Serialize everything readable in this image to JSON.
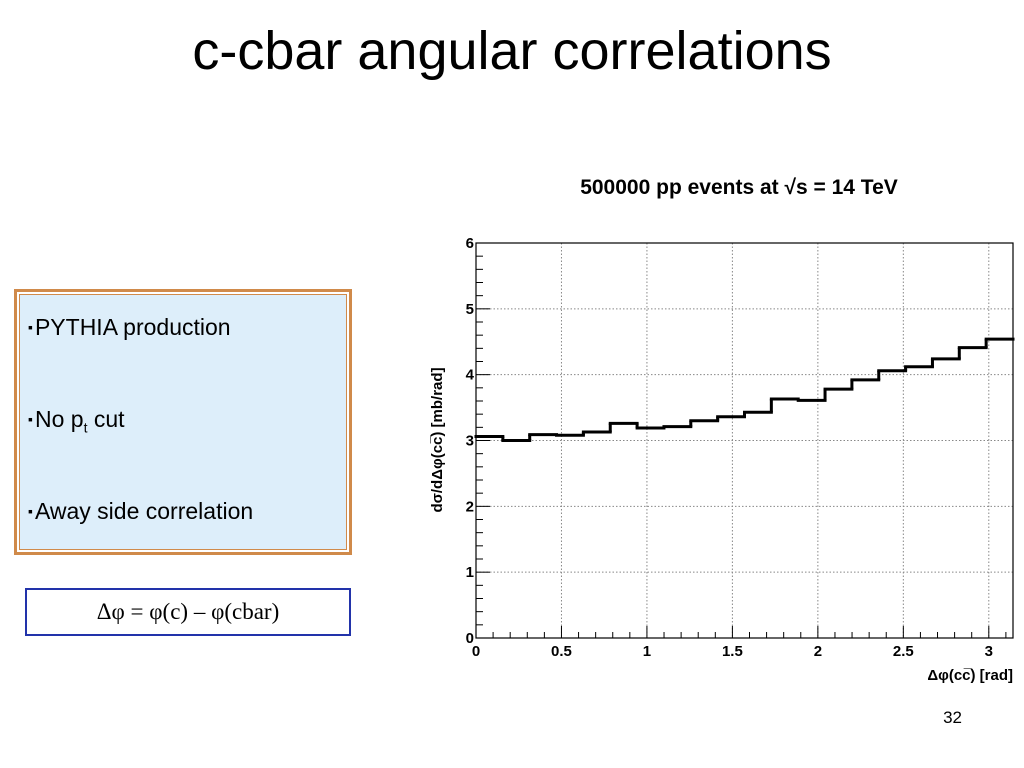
{
  "slide": {
    "title": "c-cbar angular correlations",
    "page_number": "32",
    "bullets": [
      {
        "text": "PYTHIA production",
        "sub": "",
        "rest": ""
      },
      {
        "text": "No p",
        "sub": "t",
        "rest": " cut"
      },
      {
        "text": "Away side correlation",
        "sub": "",
        "rest": ""
      }
    ],
    "bullet_marker": "▪",
    "formula": "Δφ = φ(c) – φ(cbar)",
    "colors": {
      "box_border": "#d08a4a",
      "box_fill": "#ddeefa",
      "formula_border": "#2233aa"
    }
  },
  "chart_data": {
    "type": "histogram",
    "title": "500000 pp events at √s = 14 TeV",
    "xlabel": "Δφ(cc̅)  [rad]",
    "ylabel": "dσ/dΔφ(cc̅) [mb/rad]",
    "xlim": [
      0,
      3.1416
    ],
    "ylim": [
      0,
      6
    ],
    "grid": true,
    "x_ticks": [
      "0",
      "0.5",
      "1",
      "1.5",
      "2",
      "2.5",
      "3"
    ],
    "x_tick_values": [
      0,
      0.5,
      1,
      1.5,
      2,
      2.5,
      3
    ],
    "y_ticks": [
      "0",
      "1",
      "2",
      "3",
      "4",
      "5",
      "6"
    ],
    "y_tick_values": [
      0,
      1,
      2,
      3,
      4,
      5,
      6
    ],
    "bin_edges": [
      0,
      0.1571,
      0.3142,
      0.4712,
      0.6283,
      0.7854,
      0.9425,
      1.0996,
      1.2566,
      1.4137,
      1.5708,
      1.7279,
      1.885,
      2.042,
      2.1991,
      2.3562,
      2.5133,
      2.6704,
      2.8274,
      2.9845,
      3.1416
    ],
    "values": [
      3.06,
      3.0,
      3.09,
      3.08,
      3.13,
      3.26,
      3.19,
      3.21,
      3.3,
      3.36,
      3.43,
      3.63,
      3.61,
      3.78,
      3.92,
      4.06,
      4.12,
      4.24,
      4.41,
      4.54
    ]
  }
}
